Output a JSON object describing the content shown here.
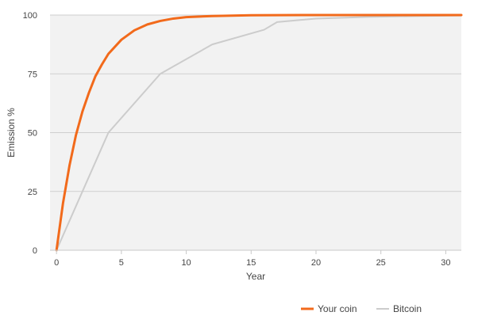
{
  "chart_data": {
    "type": "line",
    "title": "",
    "xlabel": "Year",
    "ylabel": "Emission %",
    "xlim": [
      -0.5,
      31.2
    ],
    "ylim": [
      0,
      100
    ],
    "x_ticks": [
      0,
      5,
      10,
      15,
      20,
      25,
      30
    ],
    "y_ticks": [
      0,
      25,
      50,
      75,
      100
    ],
    "grid": "horizontal",
    "legend_position": "bottom-right",
    "series": [
      {
        "name": "Your coin",
        "color": "#f26a1b",
        "stroke_width": 3,
        "points": [
          [
            0,
            0
          ],
          [
            0.5,
            20
          ],
          [
            1,
            36
          ],
          [
            1.5,
            49
          ],
          [
            2,
            59
          ],
          [
            2.5,
            67
          ],
          [
            3,
            74
          ],
          [
            3.5,
            79
          ],
          [
            4,
            83.5
          ],
          [
            5,
            89.5
          ],
          [
            6,
            93.5
          ],
          [
            7,
            96
          ],
          [
            8,
            97.5
          ],
          [
            9,
            98.5
          ],
          [
            10,
            99.1
          ],
          [
            12,
            99.6
          ],
          [
            15,
            99.9
          ],
          [
            20,
            100
          ],
          [
            25,
            100
          ],
          [
            31.2,
            100
          ]
        ]
      },
      {
        "name": "Bitcoin",
        "color": "#cccccc",
        "stroke_width": 2,
        "points": [
          [
            0,
            0
          ],
          [
            4,
            50
          ],
          [
            8,
            75
          ],
          [
            12,
            87.5
          ],
          [
            16,
            93.75
          ],
          [
            17,
            97
          ],
          [
            20,
            98.5
          ],
          [
            24,
            99.2
          ],
          [
            28,
            99.6
          ],
          [
            31.2,
            99.8
          ]
        ]
      }
    ]
  }
}
